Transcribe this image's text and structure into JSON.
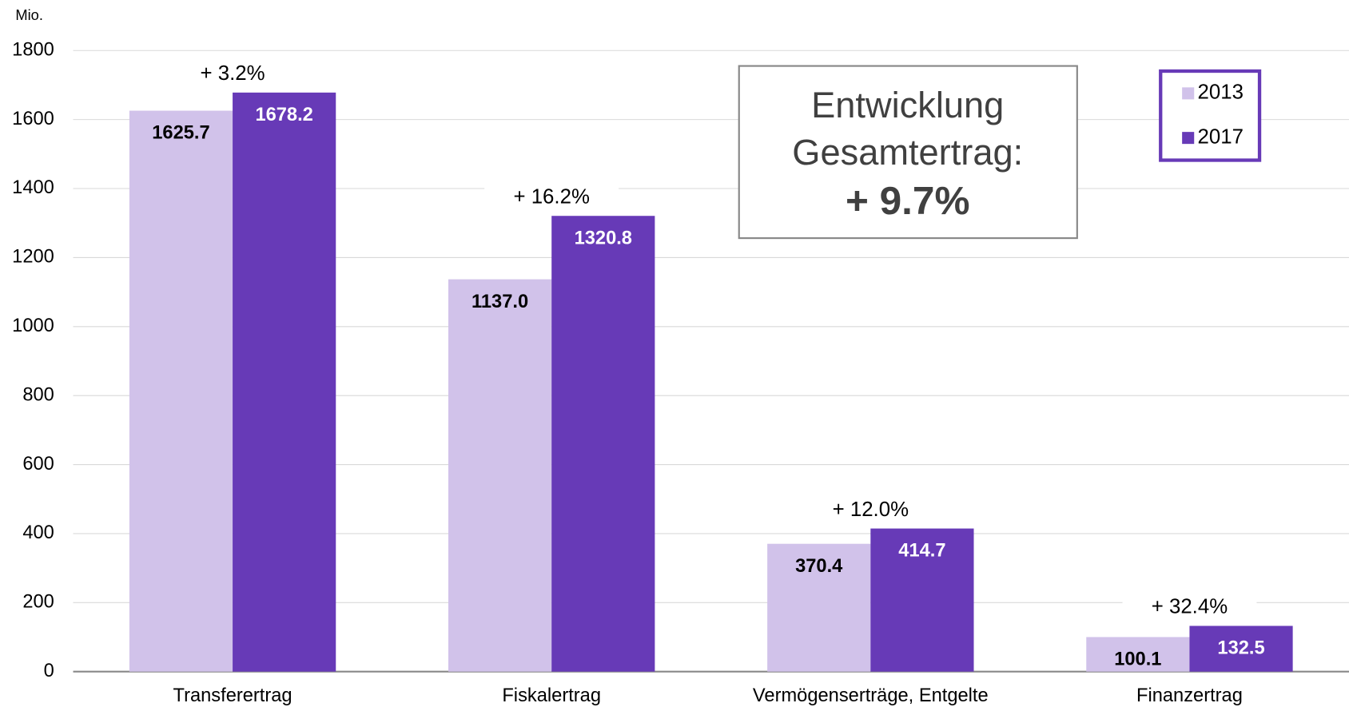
{
  "chart_data": {
    "type": "bar",
    "y_unit_label": "Mio.",
    "categories": [
      "Transferertrag",
      "Fiskalertrag",
      "Vermögenserträge, Entgelte",
      "Finanzertrag"
    ],
    "series": [
      {
        "name": "2013",
        "color": "#d1c2ea",
        "values": [
          1625.7,
          1137.0,
          370.4,
          100.1
        ],
        "value_labels": [
          "1625.7",
          "1137.0",
          "370.4",
          "100.1"
        ]
      },
      {
        "name": "2017",
        "color": "#673ab7",
        "values": [
          1678.2,
          1320.8,
          414.7,
          132.5
        ],
        "value_labels": [
          "1678.2",
          "1320.8",
          "414.7",
          "132.5"
        ]
      }
    ],
    "annotations": [
      "+ 3.2%",
      "+ 16.2%",
      "+ 12.0%",
      "+ 32.4%"
    ],
    "textbox": {
      "line1": "Entwicklung",
      "line2": "Gesamtertrag:",
      "line3": "+ 9.7%"
    },
    "ylim": [
      0,
      1800
    ],
    "yticks": [
      0,
      200,
      400,
      600,
      800,
      1000,
      1200,
      1400,
      1600,
      1800
    ],
    "grid": true,
    "legend": "top-right"
  }
}
